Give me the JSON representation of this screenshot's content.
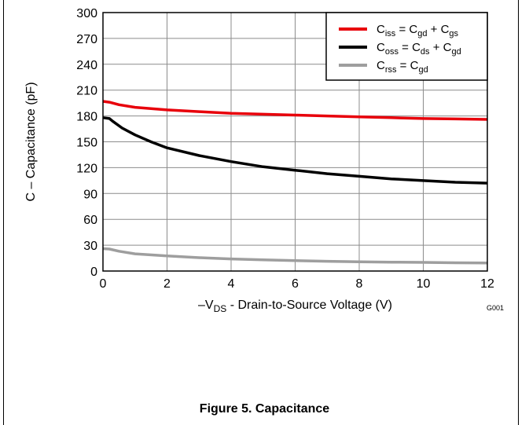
{
  "chart_data": {
    "type": "line",
    "caption": "Figure 5. Capacitance",
    "figure_code": "G001",
    "ylabel": "C – Capacitance (pF)",
    "xlabel_parts": [
      "–V",
      "DS",
      " - Drain-to-Source Voltage (V)"
    ],
    "xlim": [
      0,
      12
    ],
    "ylim": [
      0,
      300
    ],
    "xticks": [
      0,
      2,
      4,
      6,
      8,
      10,
      12
    ],
    "yticks": [
      0,
      30,
      60,
      90,
      120,
      150,
      180,
      210,
      240,
      270,
      300
    ],
    "grid": true,
    "legend_position": "top-right",
    "series": [
      {
        "legend_parts": [
          {
            "t": "C"
          },
          {
            "t": "iss",
            "sub": true
          },
          {
            "t": " = C"
          },
          {
            "t": "gd",
            "sub": true
          },
          {
            "t": " + C"
          },
          {
            "t": "gs",
            "sub": true
          }
        ],
        "color": "#e8000b",
        "points": [
          [
            0,
            197
          ],
          [
            0.2,
            196
          ],
          [
            0.5,
            193
          ],
          [
            1,
            190
          ],
          [
            2,
            187
          ],
          [
            3,
            185
          ],
          [
            4,
            183
          ],
          [
            5,
            182
          ],
          [
            6,
            181
          ],
          [
            7,
            180
          ],
          [
            8,
            179
          ],
          [
            9,
            178
          ],
          [
            10,
            177
          ],
          [
            11,
            176.5
          ],
          [
            12,
            176
          ]
        ]
      },
      {
        "legend_parts": [
          {
            "t": "C"
          },
          {
            "t": "oss",
            "sub": true
          },
          {
            "t": " = C"
          },
          {
            "t": "ds",
            "sub": true
          },
          {
            "t": " + C"
          },
          {
            "t": "gd",
            "sub": true
          }
        ],
        "color": "#000000",
        "points": [
          [
            0,
            178
          ],
          [
            0.2,
            177
          ],
          [
            0.3,
            174
          ],
          [
            0.6,
            166
          ],
          [
            1,
            158
          ],
          [
            1.5,
            150
          ],
          [
            2,
            143
          ],
          [
            3,
            134
          ],
          [
            4,
            127
          ],
          [
            5,
            121
          ],
          [
            6,
            117
          ],
          [
            7,
            113
          ],
          [
            8,
            110
          ],
          [
            9,
            107
          ],
          [
            10,
            105
          ],
          [
            11,
            103
          ],
          [
            12,
            102
          ]
        ]
      },
      {
        "legend_parts": [
          {
            "t": "C"
          },
          {
            "t": "rss",
            "sub": true
          },
          {
            "t": " =  C"
          },
          {
            "t": "gd",
            "sub": true
          }
        ],
        "color": "#9e9e9e",
        "points": [
          [
            0,
            26
          ],
          [
            0.2,
            25.5
          ],
          [
            0.5,
            23
          ],
          [
            1,
            20
          ],
          [
            2,
            17.5
          ],
          [
            3,
            15.5
          ],
          [
            4,
            14
          ],
          [
            5,
            13
          ],
          [
            6,
            12
          ],
          [
            7,
            11.3
          ],
          [
            8,
            10.8
          ],
          [
            9,
            10.3
          ],
          [
            10,
            10
          ],
          [
            11,
            9.6
          ],
          [
            12,
            9.3
          ]
        ]
      }
    ]
  }
}
